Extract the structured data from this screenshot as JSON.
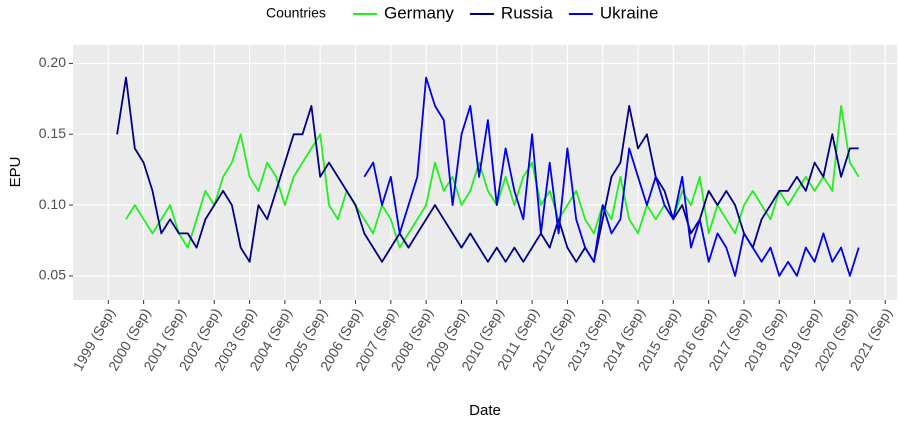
{
  "chart_data": {
    "type": "line",
    "xlabel": "Date",
    "ylabel": "EPU",
    "legend_title": "Countries",
    "legend_position": "top",
    "grid": true,
    "xlim": [
      "1998-09",
      "2022-01"
    ],
    "ylim": [
      0.033,
      0.213
    ],
    "yticks": [
      {
        "value": 0.05,
        "label": "0.05"
      },
      {
        "value": 0.1,
        "label": "0.10"
      },
      {
        "value": 0.15,
        "label": "0.15"
      },
      {
        "value": 0.2,
        "label": "0.20"
      }
    ],
    "xticks": [
      {
        "value": "1999-09",
        "label": "1999 (Sep)"
      },
      {
        "value": "2000-09",
        "label": "2000 (Sep)"
      },
      {
        "value": "2001-09",
        "label": "2001 (Sep)"
      },
      {
        "value": "2002-09",
        "label": "2002 (Sep)"
      },
      {
        "value": "2003-09",
        "label": "2003 (Sep)"
      },
      {
        "value": "2004-09",
        "label": "2004 (Sep)"
      },
      {
        "value": "2005-09",
        "label": "2005 (Sep)"
      },
      {
        "value": "2006-09",
        "label": "2006 (Sep)"
      },
      {
        "value": "2007-09",
        "label": "2007 (Sep)"
      },
      {
        "value": "2008-09",
        "label": "2008 (Sep)"
      },
      {
        "value": "2009-09",
        "label": "2009 (Sep)"
      },
      {
        "value": "2010-09",
        "label": "2010 (Sep)"
      },
      {
        "value": "2011-09",
        "label": "2011 (Sep)"
      },
      {
        "value": "2012-09",
        "label": "2012 (Sep)"
      },
      {
        "value": "2013-09",
        "label": "2013 (Sep)"
      },
      {
        "value": "2014-09",
        "label": "2014 (Sep)"
      },
      {
        "value": "2015-09",
        "label": "2015 (Sep)"
      },
      {
        "value": "2016-09",
        "label": "2016 (Sep)"
      },
      {
        "value": "2017-09",
        "label": "2017 (Sep)"
      },
      {
        "value": "2018-09",
        "label": "2018 (Sep)"
      },
      {
        "value": "2019-09",
        "label": "2019 (Sep)"
      },
      {
        "value": "2020-09",
        "label": "2020 (Sep)"
      },
      {
        "value": "2021-09",
        "label": "2021 (Sep)"
      }
    ],
    "x": [
      "1999-12",
      "2000-03",
      "2000-06",
      "2000-09",
      "2000-12",
      "2001-03",
      "2001-06",
      "2001-09",
      "2001-12",
      "2002-03",
      "2002-06",
      "2002-09",
      "2002-12",
      "2003-03",
      "2003-06",
      "2003-09",
      "2003-12",
      "2004-03",
      "2004-06",
      "2004-09",
      "2004-12",
      "2005-03",
      "2005-06",
      "2005-09",
      "2005-12",
      "2006-03",
      "2006-06",
      "2006-09",
      "2006-12",
      "2007-03",
      "2007-06",
      "2007-09",
      "2007-12",
      "2008-03",
      "2008-06",
      "2008-09",
      "2008-12",
      "2009-03",
      "2009-06",
      "2009-09",
      "2009-12",
      "2010-03",
      "2010-06",
      "2010-09",
      "2010-12",
      "2011-03",
      "2011-06",
      "2011-09",
      "2011-12",
      "2012-03",
      "2012-06",
      "2012-09",
      "2012-12",
      "2013-03",
      "2013-06",
      "2013-09",
      "2013-12",
      "2014-03",
      "2014-06",
      "2014-09",
      "2014-12",
      "2015-03",
      "2015-06",
      "2015-09",
      "2015-12",
      "2016-03",
      "2016-06",
      "2016-09",
      "2016-12",
      "2017-03",
      "2017-06",
      "2017-09",
      "2017-12",
      "2018-03",
      "2018-06",
      "2018-09",
      "2018-12",
      "2019-03",
      "2019-06",
      "2019-09",
      "2019-12",
      "2020-03",
      "2020-06",
      "2020-09",
      "2020-12"
    ],
    "series": [
      {
        "name": "Germany",
        "color": "#22ee22",
        "values": [
          null,
          0.09,
          0.1,
          0.09,
          0.08,
          0.09,
          0.1,
          0.08,
          0.07,
          0.09,
          0.11,
          0.1,
          0.12,
          0.13,
          0.15,
          0.12,
          0.11,
          0.13,
          0.12,
          0.1,
          0.12,
          0.13,
          0.14,
          0.15,
          0.1,
          0.09,
          0.11,
          0.1,
          0.09,
          0.08,
          0.1,
          0.09,
          0.07,
          0.08,
          0.09,
          0.1,
          0.13,
          0.11,
          0.12,
          0.1,
          0.11,
          0.13,
          0.11,
          0.1,
          0.12,
          0.1,
          0.12,
          0.13,
          0.1,
          0.11,
          0.09,
          0.1,
          0.11,
          0.09,
          0.08,
          0.1,
          0.09,
          0.12,
          0.09,
          0.08,
          0.1,
          0.09,
          0.1,
          0.09,
          0.11,
          0.1,
          0.12,
          0.08,
          0.1,
          0.09,
          0.08,
          0.1,
          0.11,
          0.1,
          0.09,
          0.11,
          0.1,
          0.11,
          0.12,
          0.11,
          0.12,
          0.11,
          0.17,
          0.13,
          0.12
        ]
      },
      {
        "name": "Russia",
        "color": "#000080",
        "values": [
          0.15,
          0.19,
          0.14,
          0.13,
          0.11,
          0.08,
          0.09,
          0.08,
          0.08,
          0.07,
          0.09,
          0.1,
          0.11,
          0.1,
          0.07,
          0.06,
          0.1,
          0.09,
          0.11,
          0.13,
          0.15,
          0.15,
          0.17,
          0.12,
          0.13,
          0.12,
          0.11,
          0.1,
          0.08,
          0.07,
          0.06,
          0.07,
          0.08,
          0.07,
          0.08,
          0.09,
          0.1,
          0.09,
          0.08,
          0.07,
          0.08,
          0.07,
          0.06,
          0.07,
          0.06,
          0.07,
          0.06,
          0.07,
          0.08,
          0.07,
          0.09,
          0.07,
          0.06,
          0.07,
          0.06,
          0.09,
          0.12,
          0.13,
          0.17,
          0.14,
          0.15,
          0.12,
          0.11,
          0.09,
          0.1,
          0.08,
          0.09,
          0.11,
          0.1,
          0.11,
          0.1,
          0.08,
          0.07,
          0.09,
          0.1,
          0.11,
          0.11,
          0.12,
          0.11,
          0.13,
          0.12,
          0.15,
          0.12,
          0.14,
          0.14
        ]
      },
      {
        "name": "Ukraine",
        "color": "#0000ee",
        "values": [
          null,
          null,
          null,
          null,
          null,
          null,
          null,
          null,
          null,
          null,
          null,
          null,
          null,
          null,
          null,
          null,
          null,
          null,
          null,
          null,
          null,
          null,
          null,
          null,
          null,
          null,
          null,
          null,
          0.12,
          0.13,
          0.1,
          0.12,
          0.08,
          0.1,
          0.12,
          0.19,
          0.17,
          0.16,
          0.1,
          0.15,
          0.17,
          0.12,
          0.16,
          0.1,
          0.14,
          0.11,
          0.09,
          0.15,
          0.08,
          0.13,
          0.08,
          0.14,
          0.09,
          0.07,
          0.06,
          0.1,
          0.08,
          0.09,
          0.14,
          0.12,
          0.1,
          0.12,
          0.1,
          0.09,
          0.12,
          0.07,
          0.09,
          0.06,
          0.08,
          0.07,
          0.05,
          0.08,
          0.07,
          0.06,
          0.07,
          0.05,
          0.06,
          0.05,
          0.07,
          0.06,
          0.08,
          0.06,
          0.07,
          0.05,
          0.07
        ]
      }
    ]
  }
}
